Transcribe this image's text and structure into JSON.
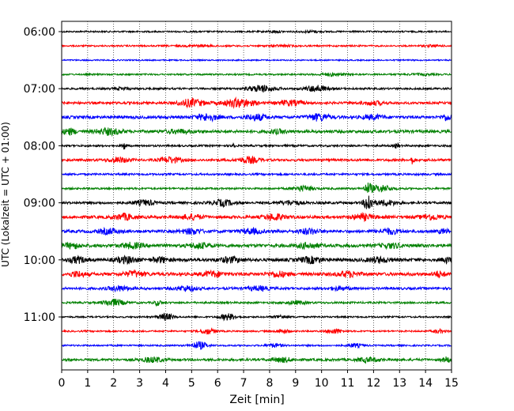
{
  "chart_data": {
    "type": "line",
    "subtype": "helicorder",
    "xlabel": "Zeit  [min]",
    "ylabel": "UTC (Lokalzeit = UTC + 01:00)",
    "xlim": [
      0,
      15
    ],
    "x_ticks": [
      "0",
      "1",
      "2",
      "3",
      "4",
      "5",
      "6",
      "7",
      "8",
      "9",
      "10",
      "11",
      "12",
      "13",
      "14",
      "15"
    ],
    "y_ticks": [
      "06:00",
      "07:00",
      "08:00",
      "09:00",
      "10:00",
      "11:00"
    ],
    "grid": "vertical dotted at each minute",
    "row_colors": [
      "#000000",
      "#ff0000",
      "#0000ff",
      "#008000"
    ],
    "rows": [
      {
        "time": "06:00",
        "color": "#000000",
        "amp": 1.0,
        "events": [
          [
            8.2,
            0.5,
            1.2
          ],
          [
            9.6,
            0.8,
            1.0
          ]
        ]
      },
      {
        "time": "06:15",
        "color": "#ff0000",
        "amp": 1.0,
        "events": [
          [
            5.3,
            1.5,
            0.8
          ],
          [
            8.5,
            1.0,
            0.8
          ],
          [
            14.2,
            0.8,
            0.8
          ]
        ]
      },
      {
        "time": "06:30",
        "color": "#0000ff",
        "amp": 0.8,
        "events": []
      },
      {
        "time": "06:45",
        "color": "#008000",
        "amp": 1.0,
        "events": [
          [
            10.4,
            1.0,
            1.5
          ],
          [
            13.8,
            1.0,
            0.8
          ]
        ]
      },
      {
        "time": "07:00",
        "color": "#000000",
        "amp": 1.2,
        "events": [
          [
            7.7,
            1.0,
            4.0
          ],
          [
            9.8,
            0.8,
            4.0
          ],
          [
            2.3,
            0.5,
            1.5
          ]
        ]
      },
      {
        "time": "07:15",
        "color": "#ff0000",
        "amp": 1.5,
        "events": [
          [
            5.0,
            1.0,
            4.5
          ],
          [
            6.8,
            1.2,
            5.0
          ],
          [
            8.8,
            1.0,
            3.0
          ],
          [
            12.0,
            0.8,
            2.0
          ]
        ]
      },
      {
        "time": "07:30",
        "color": "#0000ff",
        "amp": 1.8,
        "events": [
          [
            5.6,
            0.8,
            4.0
          ],
          [
            7.5,
            0.8,
            3.5
          ],
          [
            9.9,
            0.8,
            4.0
          ],
          [
            12.0,
            0.8,
            2.5
          ],
          [
            14.8,
            0.4,
            3.5
          ]
        ]
      },
      {
        "time": "07:45",
        "color": "#008000",
        "amp": 1.8,
        "events": [
          [
            0.3,
            0.5,
            3.5
          ],
          [
            1.8,
            1.0,
            3.5
          ],
          [
            4.5,
            1.0,
            2.0
          ],
          [
            8.3,
            0.8,
            2.0
          ]
        ]
      },
      {
        "time": "08:00",
        "color": "#000000",
        "amp": 1.2,
        "events": [
          [
            2.4,
            0.15,
            4.5
          ],
          [
            6.6,
            0.1,
            7.0
          ],
          [
            12.9,
            0.15,
            4.0
          ]
        ]
      },
      {
        "time": "08:15",
        "color": "#ff0000",
        "amp": 1.5,
        "events": [
          [
            2.2,
            0.8,
            3.0
          ],
          [
            4.2,
            0.8,
            3.5
          ],
          [
            7.2,
            0.8,
            3.5
          ],
          [
            13.5,
            0.15,
            4.5
          ]
        ]
      },
      {
        "time": "08:30",
        "color": "#0000ff",
        "amp": 1.2,
        "events": []
      },
      {
        "time": "08:45",
        "color": "#008000",
        "amp": 1.2,
        "events": [
          [
            9.3,
            0.8,
            3.0
          ],
          [
            11.8,
            0.3,
            6.0
          ],
          [
            12.3,
            0.8,
            4.0
          ]
        ]
      },
      {
        "time": "09:00",
        "color": "#000000",
        "amp": 1.5,
        "events": [
          [
            3.2,
            0.8,
            3.0
          ],
          [
            6.2,
            0.8,
            3.5
          ],
          [
            8.8,
            0.8,
            2.5
          ],
          [
            11.8,
            0.3,
            12.0
          ],
          [
            12.5,
            0.8,
            3.0
          ]
        ]
      },
      {
        "time": "09:15",
        "color": "#ff0000",
        "amp": 1.8,
        "events": [
          [
            2.4,
            0.8,
            3.5
          ],
          [
            5.0,
            0.8,
            3.0
          ],
          [
            8.2,
            0.8,
            3.5
          ],
          [
            11.6,
            0.8,
            3.5
          ],
          [
            14.2,
            0.8,
            3.0
          ]
        ]
      },
      {
        "time": "09:30",
        "color": "#0000ff",
        "amp": 1.8,
        "events": [
          [
            1.8,
            0.8,
            3.0
          ],
          [
            5.0,
            0.8,
            3.0
          ],
          [
            7.3,
            0.8,
            3.0
          ],
          [
            9.5,
            0.8,
            3.0
          ],
          [
            12.6,
            0.8,
            3.0
          ],
          [
            14.7,
            0.4,
            2.5
          ]
        ]
      },
      {
        "time": "09:45",
        "color": "#008000",
        "amp": 2.0,
        "events": [
          [
            0.4,
            0.6,
            3.0
          ],
          [
            2.7,
            0.8,
            3.0
          ],
          [
            5.3,
            0.8,
            3.0
          ],
          [
            9.5,
            0.8,
            3.0
          ],
          [
            12.7,
            0.8,
            2.5
          ]
        ]
      },
      {
        "time": "10:00",
        "color": "#000000",
        "amp": 2.0,
        "events": [
          [
            0.6,
            0.6,
            3.5
          ],
          [
            2.5,
            0.8,
            3.5
          ],
          [
            3.8,
            0.6,
            3.0
          ],
          [
            6.5,
            0.8,
            3.0
          ],
          [
            9.6,
            0.8,
            3.5
          ],
          [
            12.2,
            0.8,
            3.0
          ],
          [
            14.8,
            0.3,
            3.0
          ]
        ]
      },
      {
        "time": "10:15",
        "color": "#ff0000",
        "amp": 2.0,
        "events": [
          [
            0.6,
            0.6,
            3.0
          ],
          [
            2.8,
            0.8,
            3.0
          ],
          [
            5.8,
            0.8,
            3.0
          ],
          [
            8.3,
            0.8,
            3.0
          ],
          [
            11.0,
            0.8,
            3.0
          ],
          [
            14.5,
            0.5,
            3.0
          ]
        ]
      },
      {
        "time": "10:30",
        "color": "#0000ff",
        "amp": 1.5,
        "events": [
          [
            2.2,
            0.8,
            3.0
          ],
          [
            4.8,
            0.8,
            3.0
          ],
          [
            7.6,
            0.8,
            2.5
          ],
          [
            10.7,
            0.8,
            2.0
          ]
        ]
      },
      {
        "time": "10:45",
        "color": "#008000",
        "amp": 1.2,
        "events": [
          [
            2.0,
            0.8,
            4.0
          ],
          [
            3.7,
            0.3,
            3.0
          ],
          [
            9.0,
            0.8,
            2.0
          ]
        ]
      },
      {
        "time": "11:00",
        "color": "#000000",
        "amp": 1.0,
        "events": [
          [
            4.0,
            0.6,
            4.0
          ],
          [
            6.4,
            0.6,
            4.0
          ],
          [
            8.4,
            0.5,
            2.0
          ]
        ]
      },
      {
        "time": "11:15",
        "color": "#ff0000",
        "amp": 1.0,
        "events": [
          [
            5.6,
            0.6,
            3.5
          ],
          [
            8.5,
            0.5,
            2.5
          ],
          [
            10.5,
            0.6,
            3.0
          ],
          [
            14.5,
            0.5,
            2.0
          ]
        ]
      },
      {
        "time": "11:30",
        "color": "#0000ff",
        "amp": 1.0,
        "events": [
          [
            5.3,
            0.6,
            4.5
          ],
          [
            8.2,
            0.6,
            2.0
          ],
          [
            11.3,
            0.6,
            2.0
          ]
        ]
      },
      {
        "time": "11:45",
        "color": "#008000",
        "amp": 1.5,
        "events": [
          [
            3.5,
            0.8,
            3.0
          ],
          [
            8.5,
            0.8,
            2.5
          ],
          [
            11.8,
            0.8,
            2.5
          ],
          [
            14.8,
            0.3,
            3.0
          ]
        ]
      }
    ]
  }
}
